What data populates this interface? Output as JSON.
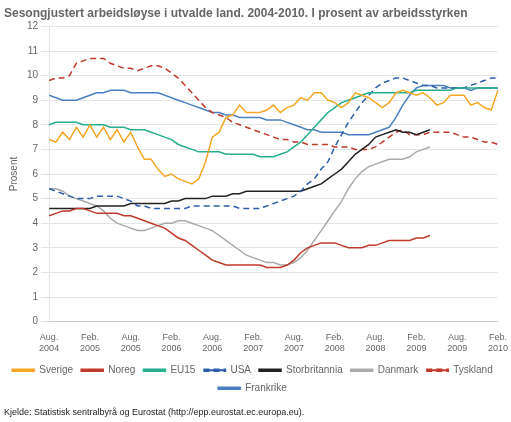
{
  "chart_data": {
    "type": "line",
    "title": "Sesongjustert arbeidsløyse i utvalde land. 2004-2010. I prosent av arbeidsstyrken",
    "y_label": "Prosent",
    "source": "Kjelde: Statistisk sentralbyrå og Eurostat (http://epp.eurostat.ec.europa.eu).",
    "categories": [
      "Aug.\n2004",
      null,
      null,
      null,
      null,
      null,
      "Feb.\n2005",
      null,
      null,
      null,
      null,
      null,
      "Aug.\n2005",
      null,
      null,
      null,
      null,
      null,
      "Feb.\n2006",
      null,
      null,
      null,
      null,
      null,
      "Aug.\n2006",
      null,
      null,
      null,
      null,
      null,
      "Feb.\n2007",
      null,
      null,
      null,
      null,
      null,
      "Aug.\n2007",
      null,
      null,
      null,
      null,
      null,
      "Feb.\n2008",
      null,
      null,
      null,
      null,
      null,
      "Aug.\n2008",
      null,
      null,
      null,
      null,
      null,
      "Feb.\n2009",
      null,
      null,
      null,
      null,
      null,
      "Aug.\n2009",
      null,
      null,
      null,
      null,
      null,
      "Feb.\n2010"
    ],
    "ylim": [
      0,
      12
    ],
    "yticks": [
      0,
      1,
      2,
      3,
      4,
      5,
      6,
      7,
      8,
      9,
      10,
      11,
      12
    ],
    "grid": true,
    "legend": "bottom",
    "series": [
      {
        "name": "Sverige",
        "color": "#f5a623",
        "line_style": "solid",
        "values": [
          7.4,
          7.3,
          7.7,
          7.4,
          7.9,
          7.5,
          8.0,
          7.5,
          7.9,
          7.4,
          7.8,
          7.3,
          7.7,
          7.1,
          6.6,
          6.6,
          6.2,
          5.9,
          6.0,
          5.8,
          5.7,
          5.6,
          5.8,
          6.5,
          7.5,
          7.7,
          8.3,
          8.4,
          8.8,
          8.5,
          8.5,
          8.5,
          8.6,
          8.8,
          8.5,
          8.7,
          8.8,
          9.1,
          9.0,
          9.3,
          9.3,
          9.0,
          8.9,
          8.7,
          8.9,
          9.3,
          9.2,
          9.1,
          8.9,
          8.7,
          8.9,
          9.3,
          9.4,
          9.3,
          9.2,
          9.3,
          9.1,
          8.8,
          8.9,
          9.2,
          9.2,
          9.2,
          8.8,
          8.9,
          8.7,
          8.6,
          9.4
        ]
      },
      {
        "name": "Noreg",
        "color": "#c0392b",
        "line_style": "solid",
        "values": [
          4.3,
          4.4,
          4.5,
          4.5,
          4.6,
          4.6,
          4.5,
          4.4,
          4.4,
          4.4,
          4.4,
          4.3,
          4.3,
          4.2,
          4.1,
          4.0,
          3.9,
          3.8,
          3.6,
          3.4,
          3.3,
          3.1,
          2.9,
          2.7,
          2.5,
          2.4,
          2.3,
          2.3,
          2.3,
          2.3,
          2.3,
          2.3,
          2.2,
          2.2,
          2.2,
          2.3,
          2.5,
          2.8,
          3.0,
          3.1,
          3.2,
          3.2,
          3.2,
          3.1,
          3.0,
          3.0,
          3.0,
          3.1,
          3.1,
          3.2,
          3.3,
          3.3,
          3.3,
          3.3,
          3.4,
          3.4,
          3.5,
          null,
          null,
          null,
          null,
          null,
          null,
          null,
          null,
          null,
          null
        ]
      },
      {
        "name": "EU15",
        "color": "#27ae8f",
        "line_style": "solid",
        "values": [
          8.0,
          8.1,
          8.1,
          8.1,
          8.1,
          8.0,
          8.0,
          8.0,
          8.0,
          7.9,
          7.9,
          7.9,
          7.8,
          7.8,
          7.8,
          7.7,
          7.6,
          7.5,
          7.4,
          7.2,
          7.1,
          7.0,
          6.9,
          6.9,
          6.9,
          6.9,
          6.8,
          6.8,
          6.8,
          6.8,
          6.8,
          6.7,
          6.7,
          6.7,
          6.8,
          6.9,
          7.1,
          7.3,
          7.6,
          7.9,
          8.2,
          8.5,
          8.7,
          8.9,
          9.0,
          9.1,
          9.2,
          9.3,
          9.3,
          9.3,
          9.3,
          9.3,
          9.3,
          9.3,
          9.4,
          9.4,
          9.4,
          9.4,
          9.4,
          9.4,
          9.5,
          9.5,
          9.5,
          9.5,
          9.5,
          9.5,
          9.5
        ]
      },
      {
        "name": "USA",
        "color": "#2c5fa8",
        "line_style": "dashed",
        "values": [
          5.4,
          5.3,
          5.2,
          5.1,
          5.0,
          5.0,
          5.0,
          5.1,
          5.1,
          5.1,
          5.1,
          5.0,
          4.9,
          4.7,
          4.7,
          4.6,
          4.6,
          4.6,
          4.6,
          4.6,
          4.6,
          4.7,
          4.7,
          4.7,
          4.7,
          4.7,
          4.7,
          4.7,
          4.6,
          4.6,
          4.6,
          4.6,
          4.7,
          4.8,
          4.9,
          5.0,
          5.1,
          5.3,
          5.6,
          5.8,
          6.2,
          6.5,
          7.1,
          7.6,
          8.1,
          8.5,
          8.9,
          9.2,
          9.5,
          9.7,
          9.8,
          9.9,
          9.9,
          9.8,
          9.7,
          9.6,
          9.6,
          9.5,
          9.5,
          9.5,
          9.5,
          9.5,
          9.6,
          9.7,
          9.8,
          9.9,
          9.9
        ]
      },
      {
        "name": "Storbritannia",
        "color": "#222222",
        "line_style": "solid",
        "values": [
          4.6,
          4.6,
          4.6,
          4.6,
          4.6,
          4.6,
          4.6,
          4.7,
          4.7,
          4.7,
          4.7,
          4.7,
          4.8,
          4.8,
          4.8,
          4.8,
          4.8,
          4.8,
          4.9,
          4.9,
          5.0,
          5.0,
          5.0,
          5.0,
          5.1,
          5.1,
          5.1,
          5.2,
          5.2,
          5.3,
          5.3,
          5.3,
          5.3,
          5.3,
          5.3,
          5.3,
          5.3,
          5.3,
          5.4,
          5.5,
          5.6,
          5.8,
          6.0,
          6.2,
          6.5,
          6.8,
          7.0,
          7.2,
          7.5,
          7.6,
          7.7,
          7.8,
          7.7,
          7.7,
          7.6,
          7.7,
          7.8,
          null,
          null,
          null,
          null,
          null,
          null,
          null,
          null,
          null,
          null
        ]
      },
      {
        "name": "Danmark",
        "color": "#aaaaaa",
        "line_style": "solid",
        "values": [
          5.4,
          5.4,
          5.3,
          5.1,
          5.0,
          4.9,
          4.8,
          4.7,
          4.5,
          4.2,
          4.0,
          3.9,
          3.8,
          3.7,
          3.7,
          3.8,
          3.9,
          4.0,
          4.0,
          4.1,
          4.1,
          4.0,
          3.9,
          3.8,
          3.7,
          3.5,
          3.3,
          3.1,
          2.9,
          2.7,
          2.6,
          2.5,
          2.4,
          2.4,
          2.3,
          2.3,
          2.4,
          2.6,
          2.9,
          3.3,
          3.7,
          4.1,
          4.5,
          4.9,
          5.4,
          5.8,
          6.1,
          6.3,
          6.4,
          6.5,
          6.6,
          6.6,
          6.6,
          6.7,
          6.9,
          7.0,
          7.1,
          null,
          null,
          null,
          null,
          null,
          null,
          null,
          null,
          null,
          null
        ]
      },
      {
        "name": "Tyskland",
        "color": "#c0392b",
        "line_style": "dashed",
        "values": [
          9.8,
          9.9,
          9.9,
          10.0,
          10.5,
          10.6,
          10.7,
          10.7,
          10.7,
          10.5,
          10.4,
          10.3,
          10.3,
          10.2,
          10.3,
          10.4,
          10.4,
          10.3,
          10.1,
          9.9,
          9.6,
          9.3,
          9.0,
          8.7,
          8.5,
          8.4,
          8.3,
          8.1,
          8.0,
          7.9,
          7.8,
          7.7,
          7.6,
          7.5,
          7.4,
          7.4,
          7.3,
          7.3,
          7.2,
          7.2,
          7.2,
          7.2,
          7.1,
          7.1,
          7.1,
          7.0,
          7.0,
          7.0,
          7.1,
          7.3,
          7.5,
          7.7,
          7.8,
          7.6,
          7.6,
          7.6,
          7.7,
          7.7,
          7.7,
          7.7,
          7.6,
          7.5,
          7.5,
          7.4,
          7.3,
          7.3,
          7.2
        ]
      },
      {
        "name": "Frankrike",
        "color": "#4a7fc1",
        "line_style": "solid",
        "values": [
          9.2,
          9.1,
          9.0,
          9.0,
          9.0,
          9.1,
          9.2,
          9.3,
          9.3,
          9.4,
          9.4,
          9.4,
          9.3,
          9.3,
          9.3,
          9.3,
          9.3,
          9.2,
          9.1,
          9.0,
          8.9,
          8.8,
          8.7,
          8.6,
          8.5,
          8.5,
          8.4,
          8.4,
          8.3,
          8.3,
          8.3,
          8.3,
          8.2,
          8.2,
          8.2,
          8.1,
          8.0,
          7.9,
          7.8,
          7.8,
          7.7,
          7.7,
          7.7,
          7.7,
          7.6,
          7.6,
          7.6,
          7.6,
          7.7,
          7.8,
          7.9,
          8.3,
          8.8,
          9.2,
          9.5,
          9.6,
          9.6,
          9.6,
          9.6,
          9.5,
          9.5,
          9.5,
          9.4,
          9.5,
          9.5,
          9.5,
          9.5
        ]
      }
    ]
  }
}
